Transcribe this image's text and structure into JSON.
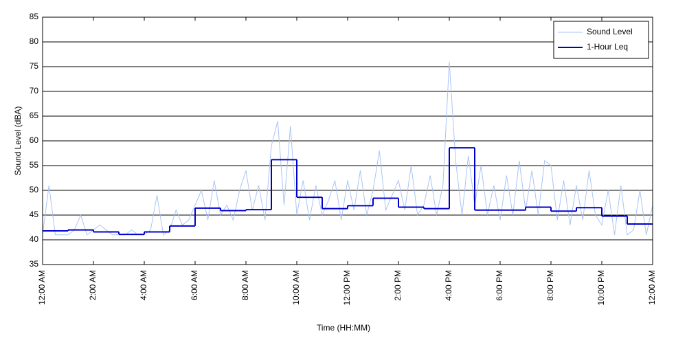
{
  "chart_data": {
    "type": "line",
    "xlabel": "Time (HH:MM)",
    "ylabel": "Sound Level (dBA)",
    "xlim": [
      0,
      24
    ],
    "ylim": [
      35,
      85
    ],
    "yticks": [
      35,
      40,
      45,
      50,
      55,
      60,
      65,
      70,
      75,
      80,
      85
    ],
    "xticks": [
      {
        "value": 0,
        "label": "12:00 AM"
      },
      {
        "value": 2,
        "label": "2:00 AM"
      },
      {
        "value": 4,
        "label": "4:00 AM"
      },
      {
        "value": 6,
        "label": "6:00 AM"
      },
      {
        "value": 8,
        "label": "8:00 AM"
      },
      {
        "value": 10,
        "label": "10:00 AM"
      },
      {
        "value": 12,
        "label": "12:00 PM"
      },
      {
        "value": 14,
        "label": "2:00 PM"
      },
      {
        "value": 16,
        "label": "4:00 PM"
      },
      {
        "value": 18,
        "label": "6:00 PM"
      },
      {
        "value": 20,
        "label": "8:00 PM"
      },
      {
        "value": 22,
        "label": "10:00 PM"
      },
      {
        "value": 24,
        "label": "12:00 AM"
      }
    ],
    "grid": true,
    "legend": "upper right",
    "series": [
      {
        "name": "Sound Level",
        "color": "#a9c4f5",
        "x": [
          0,
          0.25,
          0.5,
          0.75,
          1,
          1.25,
          1.5,
          1.75,
          2,
          2.25,
          2.5,
          2.75,
          3,
          3.25,
          3.5,
          3.75,
          4,
          4.25,
          4.5,
          4.75,
          5,
          5.25,
          5.5,
          5.75,
          6,
          6.25,
          6.5,
          6.75,
          7,
          7.25,
          7.5,
          7.75,
          8,
          8.25,
          8.5,
          8.75,
          9,
          9.25,
          9.5,
          9.75,
          10,
          10.25,
          10.5,
          10.75,
          11,
          11.25,
          11.5,
          11.75,
          12,
          12.25,
          12.5,
          12.75,
          13,
          13.25,
          13.5,
          13.75,
          14,
          14.25,
          14.5,
          14.75,
          15,
          15.25,
          15.5,
          15.75,
          16,
          16.25,
          16.5,
          16.75,
          17,
          17.25,
          17.5,
          17.75,
          18,
          18.25,
          18.5,
          18.75,
          19,
          19.25,
          19.5,
          19.75,
          20,
          20.25,
          20.5,
          20.75,
          21,
          21.25,
          21.5,
          21.75,
          22,
          22.25,
          22.5,
          22.75,
          23,
          23.25,
          23.5,
          23.75,
          24
        ],
        "values": [
          41,
          51,
          41,
          41,
          41,
          42,
          45,
          41,
          42,
          43,
          42,
          41,
          41,
          41,
          42,
          41,
          41,
          42,
          49,
          41,
          42,
          46,
          43,
          44,
          47,
          50,
          44,
          52,
          45,
          47,
          44,
          50,
          54,
          46,
          51,
          44,
          59,
          64,
          47,
          63,
          45,
          52,
          44,
          51,
          45,
          48,
          52,
          44,
          52,
          46,
          54,
          45,
          50,
          58,
          46,
          49,
          52,
          46,
          55,
          45,
          47,
          53,
          45,
          51,
          76,
          56,
          45,
          57,
          47,
          55,
          45,
          51,
          44,
          53,
          45,
          56,
          46,
          54,
          45,
          56,
          55,
          44,
          52,
          43,
          51,
          44,
          54,
          45,
          43,
          50,
          41,
          51,
          41,
          42,
          50,
          41,
          47
        ]
      },
      {
        "name": "1-Hour Leq",
        "color": "#0000cc",
        "step": "post",
        "x": [
          0,
          1,
          2,
          3,
          4,
          5,
          6,
          7,
          8,
          9,
          10,
          11,
          12,
          13,
          14,
          15,
          16,
          17,
          18,
          19,
          20,
          21,
          22,
          23
        ],
        "values": [
          41.8,
          42.0,
          41.6,
          41.1,
          41.6,
          42.8,
          46.4,
          45.9,
          46.1,
          56.2,
          48.6,
          46.3,
          46.9,
          48.4,
          46.6,
          46.3,
          58.6,
          46.0,
          46.0,
          46.6,
          45.8,
          46.5,
          44.8,
          43.2
        ]
      }
    ]
  }
}
